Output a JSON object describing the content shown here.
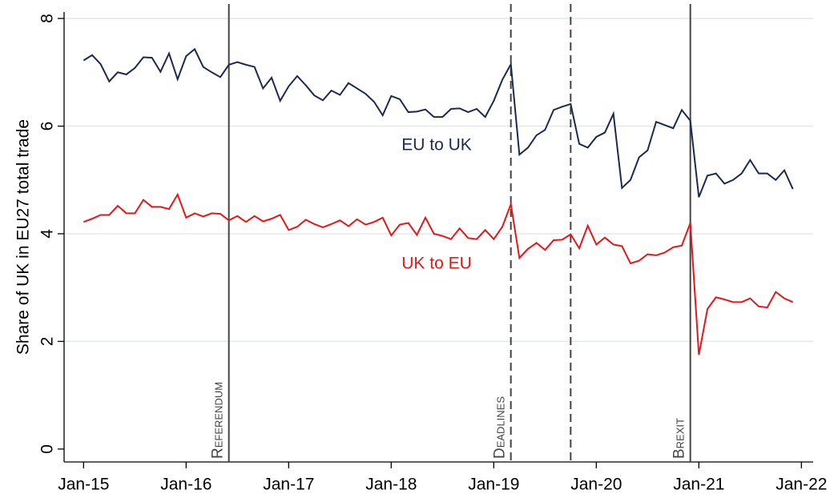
{
  "chart_data": {
    "type": "line",
    "ylabel": "Share of UK in EU27 total trade",
    "x": [
      "2015-01",
      "2015-02",
      "2015-03",
      "2015-04",
      "2015-05",
      "2015-06",
      "2015-07",
      "2015-08",
      "2015-09",
      "2015-10",
      "2015-11",
      "2015-12",
      "2016-01",
      "2016-02",
      "2016-03",
      "2016-04",
      "2016-05",
      "2016-06",
      "2016-07",
      "2016-08",
      "2016-09",
      "2016-10",
      "2016-11",
      "2016-12",
      "2017-01",
      "2017-02",
      "2017-03",
      "2017-04",
      "2017-05",
      "2017-06",
      "2017-07",
      "2017-08",
      "2017-09",
      "2017-10",
      "2017-11",
      "2017-12",
      "2018-01",
      "2018-02",
      "2018-03",
      "2018-04",
      "2018-05",
      "2018-06",
      "2018-07",
      "2018-08",
      "2018-09",
      "2018-10",
      "2018-11",
      "2018-12",
      "2019-01",
      "2019-02",
      "2019-03",
      "2019-04",
      "2019-05",
      "2019-06",
      "2019-07",
      "2019-08",
      "2019-09",
      "2019-10",
      "2019-11",
      "2019-12",
      "2020-01",
      "2020-02",
      "2020-03",
      "2020-04",
      "2020-05",
      "2020-06",
      "2020-07",
      "2020-08",
      "2020-09",
      "2020-10",
      "2020-11",
      "2020-12",
      "2021-01",
      "2021-02",
      "2021-03",
      "2021-04",
      "2021-05",
      "2021-06",
      "2021-07",
      "2021-08",
      "2021-09",
      "2021-10",
      "2021-11",
      "2021-12"
    ],
    "series": [
      {
        "name": "EU to UK",
        "color": "#1b2a4e",
        "values": [
          7.22,
          7.32,
          7.15,
          6.83,
          7.0,
          6.96,
          7.08,
          7.28,
          7.27,
          7.01,
          7.35,
          6.87,
          7.3,
          7.43,
          7.1,
          7.0,
          6.91,
          7.14,
          7.19,
          7.14,
          7.1,
          6.7,
          6.9,
          6.47,
          6.74,
          6.93,
          6.76,
          6.57,
          6.48,
          6.66,
          6.58,
          6.8,
          6.7,
          6.6,
          6.45,
          6.2,
          6.56,
          6.5,
          6.26,
          6.27,
          6.31,
          6.17,
          6.17,
          6.32,
          6.33,
          6.26,
          6.32,
          6.17,
          6.47,
          6.86,
          7.15,
          5.47,
          5.6,
          5.83,
          5.93,
          6.3,
          6.36,
          6.41,
          5.67,
          5.6,
          5.8,
          5.88,
          6.23,
          4.85,
          5.0,
          5.42,
          5.55,
          6.08,
          6.02,
          5.96,
          6.3,
          6.1,
          4.68,
          5.08,
          5.12,
          4.93,
          5.0,
          5.12,
          5.37,
          5.12,
          5.12,
          5.0,
          5.18,
          4.83
        ]
      },
      {
        "name": "UK to EU",
        "color": "#e8161b",
        "values": [
          4.22,
          4.28,
          4.35,
          4.35,
          4.52,
          4.38,
          4.38,
          4.63,
          4.5,
          4.5,
          4.46,
          4.73,
          4.3,
          4.38,
          4.32,
          4.38,
          4.37,
          4.25,
          4.33,
          4.22,
          4.33,
          4.23,
          4.28,
          4.35,
          4.07,
          4.13,
          4.26,
          4.18,
          4.12,
          4.18,
          4.25,
          4.14,
          4.27,
          4.17,
          4.22,
          4.3,
          3.97,
          4.17,
          4.2,
          3.98,
          4.3,
          4.0,
          3.96,
          3.9,
          4.1,
          3.92,
          3.9,
          4.07,
          3.9,
          4.13,
          4.55,
          3.55,
          3.72,
          3.83,
          3.7,
          3.88,
          3.89,
          3.99,
          3.73,
          4.15,
          3.8,
          3.93,
          3.8,
          3.77,
          3.45,
          3.5,
          3.62,
          3.6,
          3.65,
          3.75,
          3.78,
          4.2,
          1.75,
          2.6,
          2.82,
          2.78,
          2.73,
          2.73,
          2.8,
          2.65,
          2.63,
          2.92,
          2.8,
          2.73
        ]
      }
    ],
    "xlim": [
      "2014-11",
      "2022-02"
    ],
    "xticks": [
      {
        "value": "2015-01",
        "label": "Jan-15"
      },
      {
        "value": "2016-01",
        "label": "Jan-16"
      },
      {
        "value": "2017-01",
        "label": "Jan-17"
      },
      {
        "value": "2018-01",
        "label": "Jan-18"
      },
      {
        "value": "2019-01",
        "label": "Jan-19"
      },
      {
        "value": "2020-01",
        "label": "Jan-20"
      },
      {
        "value": "2021-01",
        "label": "Jan-21"
      },
      {
        "value": "2022-01",
        "label": "Jan-22"
      }
    ],
    "ylim": [
      -0.24,
      8.12
    ],
    "yticks": [
      0,
      2,
      4,
      6,
      8
    ],
    "grid": true,
    "annotations": [
      {
        "x": "2016-06",
        "text": "Referendum",
        "style": "solid"
      },
      {
        "x": "2019-03",
        "text": "Deadlines",
        "style": "dashed"
      },
      {
        "x": "2019-10",
        "style": "dashed"
      },
      {
        "x": "2020-12",
        "text": "Brexit",
        "style": "solid"
      }
    ]
  }
}
